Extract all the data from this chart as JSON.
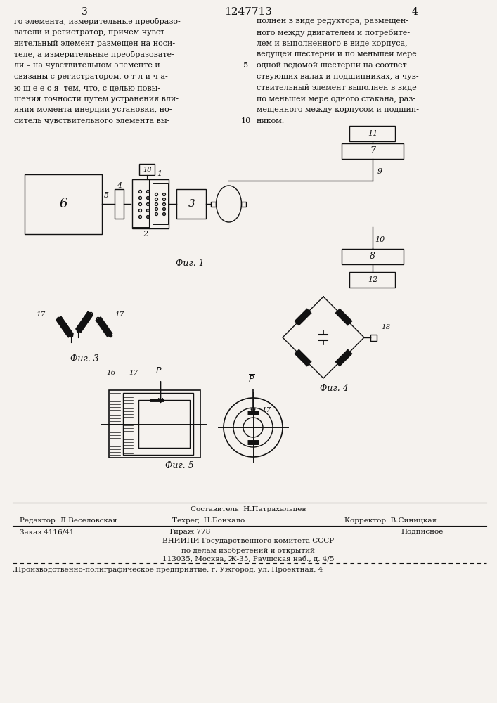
{
  "bg_color": "#f5f2ee",
  "text_color": "#111111",
  "title_patent": "1247713",
  "page_left": "3",
  "page_right": "4",
  "left_col_text": [
    "го элемента, измерительные преобразо-",
    "ватели и регистратор, причем чувст-",
    "вительный элемент размещен на носи-",
    "теле, а измерительные преобразовате-",
    "ли – на чувствительном элементе и",
    "связаны с регистратором, о т л и ч а-",
    "ю щ е е с я  тем, что, с целью повы-",
    "шения точности путем устранения вли-",
    "яния момента инерции установки, но-",
    "ситель чувствительного элемента вы-"
  ],
  "right_col_text": [
    "полнен в виде редуктора, размещен-",
    "ного между двигателем и потребите-",
    "лем и выполненного в виде корпуса,",
    "ведущей шестерни и по меньшей мере",
    "одной ведомой шестерни на соответ-",
    "ствующих валах и подшипниках, а чув-",
    "ствительный элемент выполнен в виде",
    "по меньшей мере одного стакана, раз-",
    "мещенного между корпусом и подшип-",
    "ником."
  ],
  "fig1_label": "Фиг. 1",
  "fig3_label": "Фиг. 3",
  "fig4_label": "Фиг. 4",
  "fig5_label": "Фиг. 5",
  "footer_lines": [
    "Составитель  Н.Патрахальцев",
    "Редактор  Л.Веселовская",
    "Техред  Н.Бонкало",
    "Корректор  В.Синицкая",
    "Заказ 4116/41",
    "Тираж 778",
    "Подписное",
    "ВНИИПИ Государственного комитета СССР",
    "по делам изобретений и открытий",
    "113035, Москва, Ж-35, Раушская наб., д. 4/5",
    ".Производственно-полиграфическое предприятие, г. Ужгород, ул. Проектная, 4"
  ]
}
